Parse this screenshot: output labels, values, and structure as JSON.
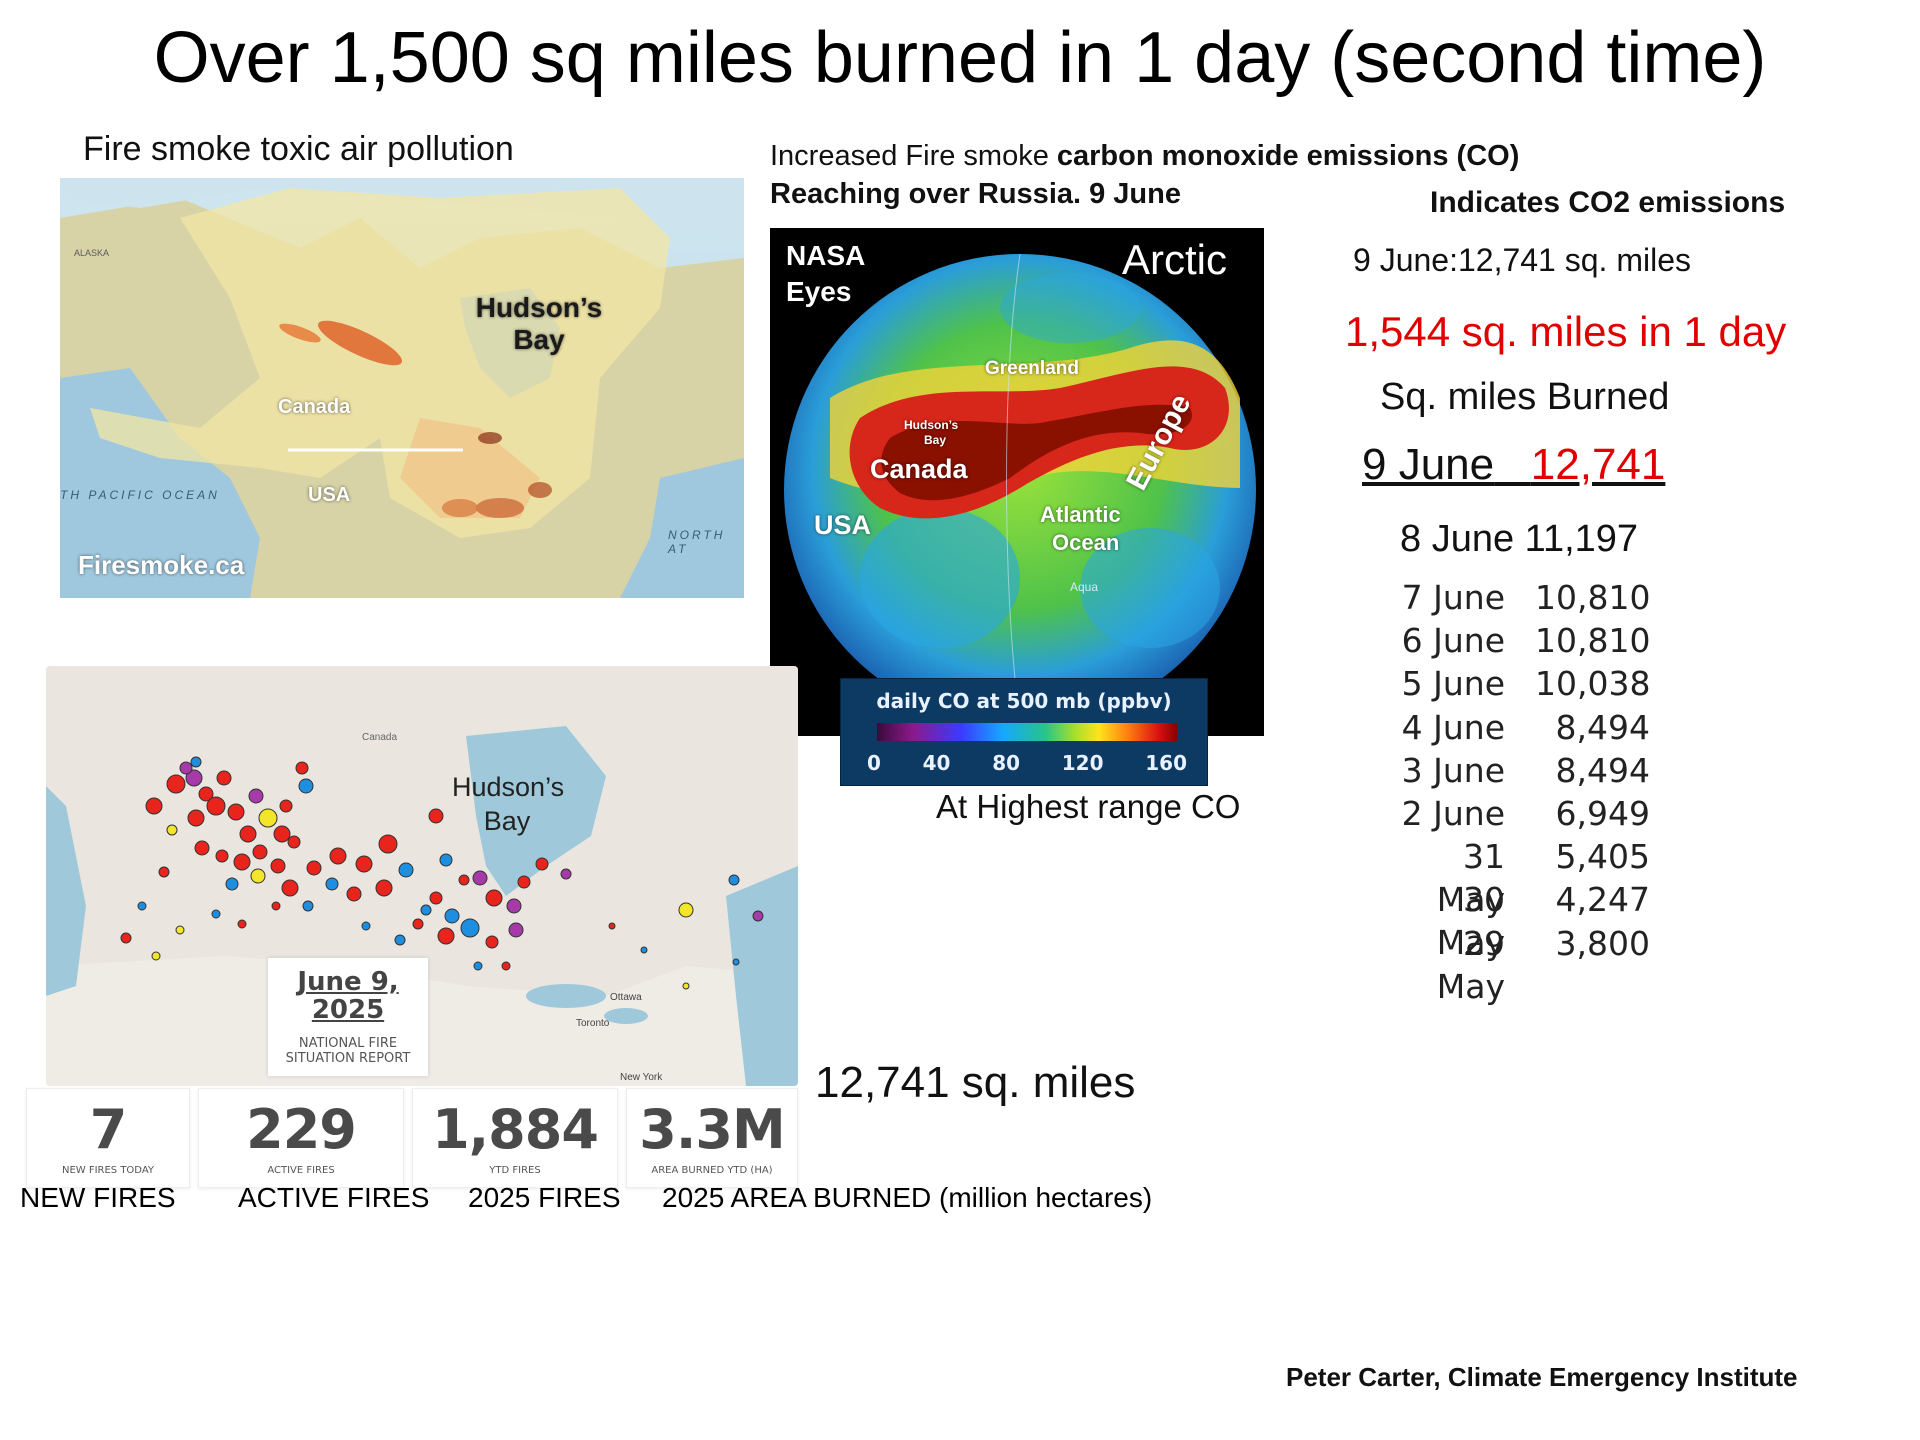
{
  "title": "Over 1,500 sq miles burned in 1 day (second time)",
  "smoke_map": {
    "caption": "Fire smoke toxic air pollution",
    "labels": {
      "hudson": "Hudson’s Bay",
      "canada": "Canada",
      "usa": "USA",
      "source": "Firesmoke.ca",
      "pacific": "TH PACIFIC OCEAN",
      "north_atlantic": "NORTH AT",
      "alaska": "ALASKA"
    }
  },
  "co_panel": {
    "line1_prefix": "Increased Fire smoke ",
    "line1_bold": "carbon monoxide emissions (CO)",
    "line2": "Reaching over Russia. 9 June",
    "globe_labels": {
      "nasa": "NASA",
      "eyes": "Eyes",
      "arctic": "Arctic",
      "greenland": "Greenland",
      "europe": "Europe",
      "hudson_1": "Hudson’s",
      "hudson_2": "Bay",
      "canada": "Canada",
      "usa": "USA",
      "atlantic_1": "Atlantic",
      "atlantic_2": "Ocean",
      "aqua": "Aqua"
    },
    "colorbar": {
      "title": "daily CO at 500 mb (ppbv)",
      "ticks": [
        "0",
        "40",
        "80",
        "120",
        "160"
      ]
    },
    "caption": "At Highest range CO"
  },
  "right_column": {
    "indicates": "Indicates CO2 emissions",
    "june9_line": "9 June:12,741 sq. miles",
    "daily_increase": "1,544 sq. miles in 1 day",
    "burned_heading": "Sq. miles Burned",
    "today_date": "9 June",
    "today_value": "12,741",
    "june8": "8 June 11,197",
    "history": [
      {
        "date": "7 June",
        "value": "10,810"
      },
      {
        "date": "6 June",
        "value": "10,810"
      },
      {
        "date": "5 June",
        "value": "10,038"
      },
      {
        "date": "4 June",
        "value": "8,494"
      },
      {
        "date": "3 June",
        "value": "8,494"
      },
      {
        "date": "2 June",
        "value": "6,949"
      },
      {
        "date": "31 May",
        "value": "5,405"
      },
      {
        "date": "30 May",
        "value": "4,247"
      },
      {
        "date": "29 May",
        "value": "3,800"
      }
    ]
  },
  "fire_map": {
    "hudson_1": "Hudson’s",
    "hudson_2": "Bay",
    "canada_small": "Canada",
    "ottawa": "Ottawa",
    "toronto": "Toronto",
    "new_york": "New York",
    "report_date_1": "June 9,",
    "report_date_2": "2025",
    "report_sub_1": "NATIONAL FIRE",
    "report_sub_2": "SITUATION REPORT"
  },
  "sq_miles_total": "12,741 sq. miles",
  "stats": [
    {
      "value": "7",
      "sub": "NEW FIRES TODAY",
      "label": "NEW FIRES"
    },
    {
      "value": "229",
      "sub": "ACTIVE FIRES",
      "label": "ACTIVE FIRES"
    },
    {
      "value": "1,884",
      "sub": "YTD FIRES",
      "label": "2025 FIRES"
    },
    {
      "value": "3.3M",
      "sub": "AREA BURNED YTD (HA)",
      "label": "2025 AREA BURNED (million hectares)"
    }
  ],
  "credit": "Peter Carter,  Climate Emergency Institute",
  "colors": {
    "accent_red": "#e00000",
    "fire_red": "#e8241c",
    "fire_blue": "#1e8fe0",
    "fire_yellow": "#f2e52a",
    "fire_purple": "#a63aa8"
  }
}
